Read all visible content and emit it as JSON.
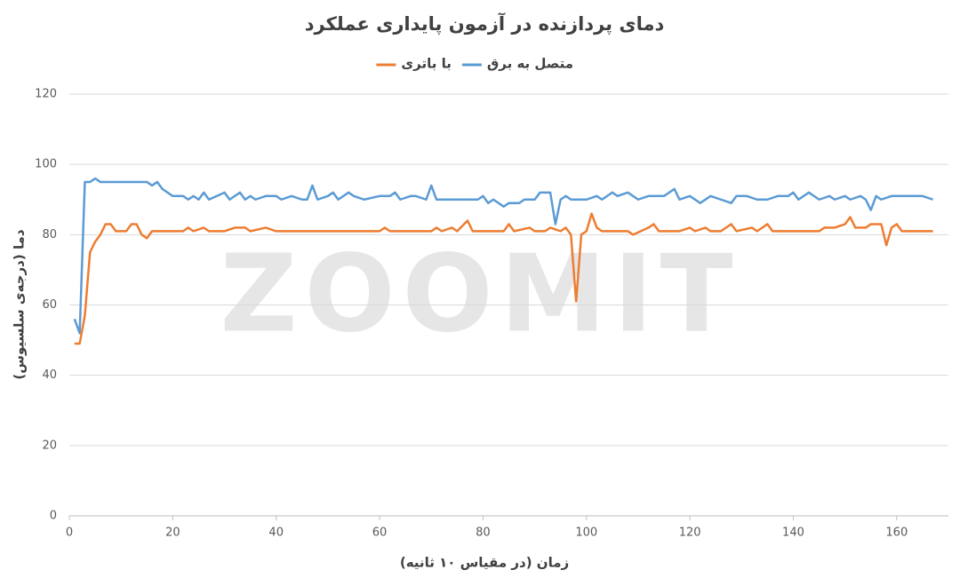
{
  "chart_data": {
    "type": "line",
    "title": "دمای پردازنده در آزمون پایداری عملکرد",
    "watermark": "ZOOMIT",
    "x_label": "زمان (در مقیاس ۱۰ ثانیه)",
    "y_label": "دما (درجه‌ی سلسیوس)",
    "xlim": [
      0,
      170
    ],
    "xticks": [
      0,
      20,
      40,
      60,
      80,
      100,
      120,
      140,
      160
    ],
    "ylim": [
      0,
      120
    ],
    "yticks": [
      0,
      20,
      40,
      60,
      80,
      100,
      120
    ],
    "grid": true,
    "legend": "top",
    "series": [
      {
        "name": "متصل به برق",
        "color": "#5b9bd5",
        "x": [
          1,
          2,
          3,
          4,
          5,
          6,
          10,
          15,
          16,
          17,
          18,
          20,
          22,
          23,
          24,
          25,
          26,
          27,
          30,
          31,
          33,
          34,
          35,
          36,
          38,
          40,
          41,
          43,
          45,
          46,
          47,
          48,
          50,
          51,
          52,
          54,
          55,
          57,
          60,
          62,
          63,
          64,
          66,
          67,
          69,
          70,
          71,
          75,
          79,
          80,
          81,
          82,
          84,
          85,
          87,
          88,
          90,
          91,
          93,
          94,
          95,
          96,
          97,
          100,
          102,
          103,
          105,
          106,
          108,
          110,
          112,
          115,
          117,
          118,
          120,
          122,
          124,
          126,
          128,
          129,
          131,
          133,
          135,
          137,
          139,
          140,
          141,
          143,
          145,
          147,
          148,
          150,
          151,
          153,
          154,
          155,
          156,
          157,
          159,
          161,
          163,
          165,
          167
        ],
        "values": [
          56,
          52,
          95,
          95,
          96,
          95,
          95,
          95,
          94,
          95,
          93,
          91,
          91,
          90,
          91,
          90,
          92,
          90,
          92,
          90,
          92,
          90,
          91,
          90,
          91,
          91,
          90,
          91,
          90,
          90,
          94,
          90,
          91,
          92,
          90,
          92,
          91,
          90,
          91,
          91,
          92,
          90,
          91,
          91,
          90,
          94,
          90,
          90,
          90,
          91,
          89,
          90,
          88,
          89,
          89,
          90,
          90,
          92,
          92,
          83,
          90,
          91,
          90,
          90,
          91,
          90,
          92,
          91,
          92,
          90,
          91,
          91,
          93,
          90,
          91,
          89,
          91,
          90,
          89,
          91,
          91,
          90,
          90,
          91,
          91,
          92,
          90,
          92,
          90,
          91,
          90,
          91,
          90,
          91,
          90,
          87,
          91,
          90,
          91,
          91,
          91,
          91,
          90
        ]
      },
      {
        "name": "با باتری",
        "color": "#ed7d31",
        "x": [
          1,
          2,
          3,
          4,
          5,
          6,
          7,
          8,
          9,
          10,
          11,
          12,
          13,
          14,
          15,
          16,
          20,
          22,
          23,
          24,
          26,
          27,
          30,
          32,
          34,
          35,
          38,
          40,
          50,
          60,
          61,
          62,
          70,
          71,
          72,
          74,
          75,
          77,
          78,
          84,
          85,
          86,
          89,
          90,
          92,
          93,
          95,
          96,
          97,
          98,
          99,
          100,
          101,
          102,
          103,
          108,
          109,
          112,
          113,
          114,
          118,
          120,
          121,
          123,
          124,
          126,
          128,
          129,
          132,
          133,
          135,
          136,
          140,
          145,
          146,
          148,
          150,
          151,
          152,
          154,
          155,
          157,
          158,
          159,
          160,
          161,
          167
        ],
        "values": [
          49,
          49,
          57,
          75,
          78,
          80,
          83,
          83,
          81,
          81,
          81,
          83,
          83,
          80,
          79,
          81,
          81,
          81,
          82,
          81,
          82,
          81,
          81,
          82,
          82,
          81,
          82,
          81,
          81,
          81,
          82,
          81,
          81,
          82,
          81,
          82,
          81,
          84,
          81,
          81,
          83,
          81,
          82,
          81,
          81,
          82,
          81,
          82,
          80,
          61,
          80,
          81,
          86,
          82,
          81,
          81,
          80,
          82,
          83,
          81,
          81,
          82,
          81,
          82,
          81,
          81,
          83,
          81,
          82,
          81,
          83,
          81,
          81,
          81,
          82,
          82,
          83,
          85,
          82,
          82,
          83,
          83,
          77,
          82,
          83,
          81,
          81
        ]
      }
    ]
  }
}
